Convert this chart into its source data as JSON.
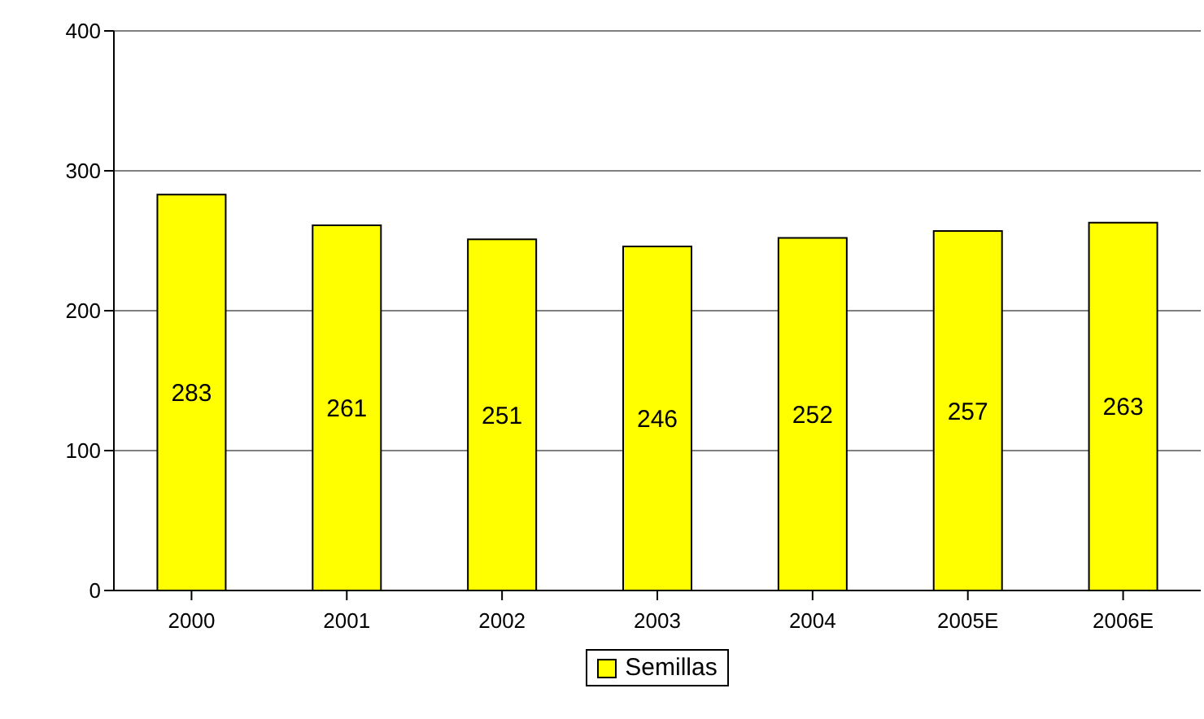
{
  "chart_data": {
    "type": "bar",
    "categories": [
      "2000",
      "2001",
      "2002",
      "2003",
      "2004",
      "2005E",
      "2006E"
    ],
    "series": [
      {
        "name": "Semillas",
        "color": "#ffff00",
        "values": [
          283,
          261,
          251,
          246,
          252,
          257,
          263
        ]
      }
    ],
    "ylim": [
      0,
      400
    ],
    "yticks": [
      0,
      100,
      200,
      300,
      400
    ],
    "grid": "y",
    "legend": "bottom",
    "data_labels": true
  }
}
